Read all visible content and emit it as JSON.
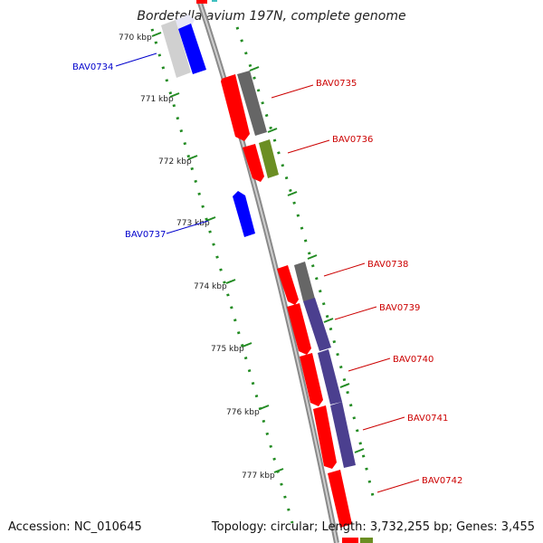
{
  "title": "Bordetella avium 197N, complete genome",
  "accession": "Accession: NC_010645",
  "summary": "Topology: circular; Length: 3,732,255 bp; Genes: 3,455",
  "ticks": [
    "770 kbp",
    "771 kbp",
    "772 kbp",
    "773 kbp",
    "774 kbp",
    "775 kbp",
    "776 kbp",
    "777 kbp"
  ],
  "gene_labels": [
    {
      "text": "BAV0734",
      "color": "#0000cc"
    },
    {
      "text": "BAV0735",
      "color": "#cc0000"
    },
    {
      "text": "BAV0736",
      "color": "#cc0000"
    },
    {
      "text": "BAV0737",
      "color": "#0000cc"
    },
    {
      "text": "BAV0738",
      "color": "#cc0000"
    },
    {
      "text": "BAV0739",
      "color": "#cc0000"
    },
    {
      "text": "BAV0740",
      "color": "#cc0000"
    },
    {
      "text": "BAV0741",
      "color": "#cc0000"
    },
    {
      "text": "BAV0742",
      "color": "#cc0000"
    }
  ],
  "colors": {
    "forward_cds": "#ff0000",
    "reverse_cds": "#0000ff",
    "backbone": "#888888",
    "tick_dots": "#228b22",
    "cog_gray": "#666666",
    "cog_olive": "#6b8e23",
    "cog_purple": "#4b3f8f"
  }
}
